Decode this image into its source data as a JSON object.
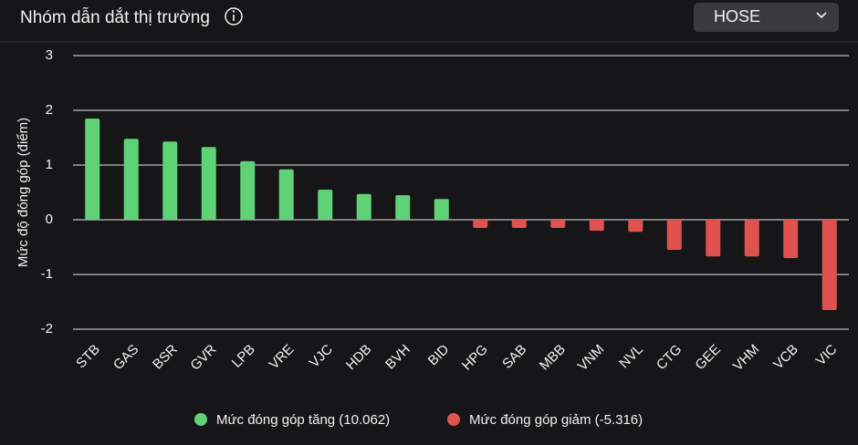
{
  "header": {
    "title": "Nhóm dẫn dắt thị trường",
    "dropdown": "HOSE"
  },
  "chart_data": {
    "type": "bar",
    "y_label": "Mức độ đóng góp (điểm)",
    "categories": [
      "STB",
      "GAS",
      "BSR",
      "GVR",
      "LPB",
      "VRE",
      "VJC",
      "HDB",
      "BVH",
      "BID",
      "HPG",
      "SAB",
      "MBB",
      "VNM",
      "NVL",
      "CTG",
      "GEE",
      "VHM",
      "VCB",
      "VIC"
    ],
    "series": [
      {
        "name": "Mức đóng góp tăng (10.062)",
        "color": "#5fd176",
        "values": [
          1.85,
          1.48,
          1.43,
          1.33,
          1.07,
          0.92,
          0.55,
          0.47,
          0.45,
          0.38,
          null,
          null,
          null,
          null,
          null,
          null,
          null,
          null,
          null,
          null
        ]
      },
      {
        "name": "Mức đóng góp giảm (-5.316)",
        "color": "#e0524f",
        "values": [
          null,
          null,
          null,
          null,
          null,
          null,
          null,
          null,
          null,
          null,
          -0.15,
          -0.15,
          -0.15,
          -0.2,
          -0.22,
          -0.55,
          -0.67,
          -0.67,
          -0.7,
          -1.65
        ]
      }
    ],
    "ylim": [
      -2,
      3
    ],
    "yticks": [
      -2,
      -1,
      0,
      1,
      2,
      3
    ],
    "grid": true,
    "legend": "bottom"
  }
}
